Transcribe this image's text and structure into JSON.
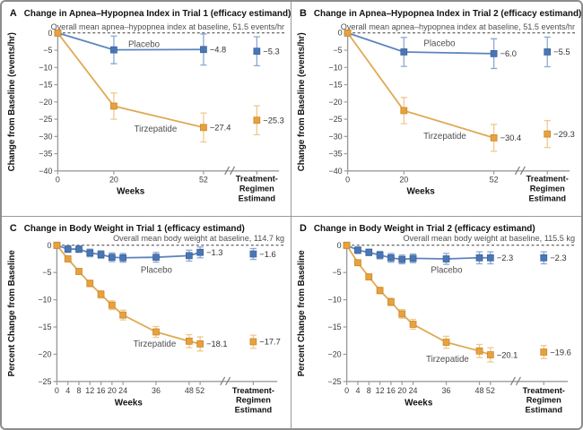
{
  "figure": {
    "description": "Four-panel clinical trial line chart figure",
    "colors": {
      "placebo_fill": "#4a76b4",
      "placebo_line": "#5b85bd",
      "placebo_err": "#8ca8d1",
      "placebo_edge": "#3d63a0",
      "tirzepatide_fill": "#e8a13c",
      "tirzepatide_line": "#e0a953",
      "tirzepatide_err": "#f0c98d",
      "tirzepatide_edge": "#c9882a",
      "axis": "#9b9b9b",
      "zero_dash": "#3f3f3f"
    }
  },
  "chart_data": [
    {
      "panel": "A",
      "kind": "ahi",
      "type": "line",
      "title": "Change in Apnea–Hypopnea Index in Trial 1 (efficacy estimand)",
      "annotation": "Overall mean apnea–hypopnea index at baseline, 51.5 events/hr",
      "ylabel": "Change from Baseline (events/hr)",
      "xlabel": "Weeks",
      "estimand_label": [
        "Treatment-",
        "Regimen",
        "Estimand"
      ],
      "ylim": [
        -40,
        0
      ],
      "yticks": [
        0,
        -5,
        -10,
        -15,
        -20,
        -25,
        -30,
        -35,
        -40
      ],
      "xticks": [
        0,
        20,
        52
      ],
      "series": [
        {
          "name": "Placebo",
          "color_key": "placebo",
          "x": [
            0,
            20,
            52
          ],
          "y": [
            0,
            -4.9,
            -4.8
          ],
          "err": [
            0,
            4.0,
            4.5
          ],
          "end_label": "−4.8",
          "estimand": {
            "y": -5.3,
            "err": 4.2,
            "label": "−5.3"
          },
          "name_label_pos": [
            160,
            51
          ]
        },
        {
          "name": "Tirzepatide",
          "color_key": "tirzepatide",
          "x": [
            0,
            20,
            52
          ],
          "y": [
            0,
            -21.2,
            -27.4
          ],
          "err": [
            0,
            3.8,
            4.2
          ],
          "end_label": "−27.4",
          "estimand": {
            "y": -25.3,
            "err": 4.2,
            "label": "−25.3"
          },
          "name_label_pos": [
            173,
            146
          ]
        }
      ]
    },
    {
      "panel": "B",
      "kind": "ahi",
      "type": "line",
      "title": "Change in Apnea–Hypopnea Index in Trial 2 (efficacy estimand)",
      "annotation": "Overall mean apnea–hypopnea index at baseline, 51.5 events/hr",
      "ylabel": "Change from Baseline (events/hr)",
      "xlabel": "Weeks",
      "estimand_label": [
        "Treatment-",
        "Regimen",
        "Estimand"
      ],
      "ylim": [
        -40,
        0
      ],
      "yticks": [
        0,
        -5,
        -10,
        -15,
        -20,
        -25,
        -30,
        -35,
        -40
      ],
      "xticks": [
        0,
        20,
        52
      ],
      "series": [
        {
          "name": "Placebo",
          "color_key": "placebo",
          "x": [
            0,
            20,
            52
          ],
          "y": [
            0,
            -5.5,
            -6.0
          ],
          "err": [
            0,
            4.2,
            4.3
          ],
          "end_label": "−6.0",
          "estimand": {
            "y": -5.5,
            "err": 4.3,
            "label": "−5.5"
          },
          "name_label_pos": [
            166,
            50
          ]
        },
        {
          "name": "Tirzepatide",
          "color_key": "tirzepatide",
          "x": [
            0,
            20,
            52
          ],
          "y": [
            0,
            -22.5,
            -30.4
          ],
          "err": [
            0,
            3.8,
            3.9
          ],
          "end_label": "−30.4",
          "estimand": {
            "y": -29.3,
            "err": 3.9,
            "label": "−29.3"
          },
          "name_label_pos": [
            172,
            154
          ]
        }
      ]
    },
    {
      "panel": "C",
      "kind": "weight",
      "type": "line",
      "title": "Change in Body Weight in Trial 1 (efficacy estimand)",
      "annotation": "Overall mean body weight at baseline, 114.7 kg",
      "ylabel": "Percent Change from Baseline",
      "xlabel": "Weeks",
      "estimand_label": [
        "Treatment-",
        "Regimen",
        "Estimand"
      ],
      "ylim": [
        -25,
        0
      ],
      "yticks": [
        0,
        -5,
        -10,
        -15,
        -20,
        -25
      ],
      "xticks": [
        0,
        4,
        8,
        12,
        16,
        20,
        24,
        36,
        48,
        52
      ],
      "series": [
        {
          "name": "Placebo",
          "color_key": "placebo",
          "x": [
            0,
            4,
            8,
            12,
            16,
            20,
            24,
            36,
            48,
            52
          ],
          "y": [
            0,
            -0.7,
            -0.7,
            -1.4,
            -1.7,
            -2.2,
            -2.3,
            -2.2,
            -1.9,
            -1.3
          ],
          "err": [
            0,
            0.6,
            0.6,
            0.7,
            0.7,
            0.8,
            0.8,
            0.9,
            1.0,
            1.0
          ],
          "end_label": "−1.3",
          "estimand": {
            "y": -1.6,
            "err": 1.0,
            "label": "−1.6"
          },
          "name_label_pos": [
            174,
            63
          ]
        },
        {
          "name": "Tirzepatide",
          "color_key": "tirzepatide",
          "x": [
            0,
            4,
            8,
            12,
            16,
            20,
            24,
            36,
            48,
            52
          ],
          "y": [
            0,
            -2.5,
            -4.8,
            -7.0,
            -9.0,
            -11.0,
            -12.8,
            -15.9,
            -17.6,
            -18.1
          ],
          "err": [
            0,
            0.4,
            0.5,
            0.6,
            0.7,
            0.8,
            0.9,
            1.0,
            1.2,
            1.3
          ],
          "end_label": "−18.1",
          "estimand": {
            "y": -17.7,
            "err": 1.2,
            "label": "−17.7"
          },
          "name_label_pos": [
            172,
            146
          ]
        }
      ]
    },
    {
      "panel": "D",
      "kind": "weight",
      "type": "line",
      "title": "Change in Body Weight in Trial 2 (efficacy estimand)",
      "annotation": "Overall mean body weight at baseline, 115.5 kg",
      "ylabel": "Percent Change from Baseline",
      "xlabel": "Weeks",
      "estimand_label": [
        "Treatment-",
        "Regimen",
        "Estimand"
      ],
      "ylim": [
        -25,
        0
      ],
      "yticks": [
        0,
        -5,
        -10,
        -15,
        -20,
        -25
      ],
      "xticks": [
        0,
        4,
        8,
        12,
        16,
        20,
        24,
        36,
        48,
        52
      ],
      "series": [
        {
          "name": "Placebo",
          "color_key": "placebo",
          "x": [
            0,
            4,
            8,
            12,
            16,
            20,
            24,
            36,
            48,
            52
          ],
          "y": [
            0,
            -0.9,
            -1.3,
            -1.8,
            -2.3,
            -2.6,
            -2.4,
            -2.5,
            -2.3,
            -2.3
          ],
          "err": [
            0,
            0.6,
            0.6,
            0.7,
            0.8,
            0.8,
            0.8,
            1.0,
            1.1,
            1.1
          ],
          "end_label": "−2.3",
          "estimand": {
            "y": -2.3,
            "err": 1.1,
            "label": "−2.3"
          },
          "name_label_pos": [
            174,
            63
          ]
        },
        {
          "name": "Tirzepatide",
          "color_key": "tirzepatide",
          "x": [
            0,
            4,
            8,
            12,
            16,
            20,
            24,
            36,
            48,
            52
          ],
          "y": [
            0,
            -3.2,
            -5.8,
            -8.3,
            -10.4,
            -12.6,
            -14.5,
            -17.8,
            -19.4,
            -20.1
          ],
          "err": [
            0,
            0.4,
            0.5,
            0.6,
            0.7,
            0.8,
            0.9,
            1.1,
            1.2,
            1.3
          ],
          "end_label": "−20.1",
          "estimand": {
            "y": -19.6,
            "err": 1.2,
            "label": "−19.6"
          },
          "name_label_pos": [
            175,
            163
          ]
        }
      ]
    }
  ]
}
